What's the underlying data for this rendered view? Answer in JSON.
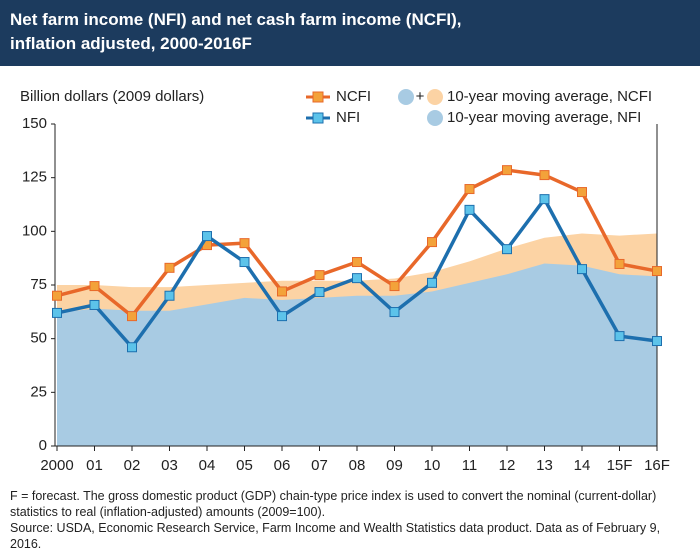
{
  "chart_data": {
    "type": "line",
    "title": "Net farm income (NFI) and net cash farm income (NCFI), inflation adjusted, 2000-2016F",
    "y_axis_label": "Billion dollars (2009 dollars)",
    "categories": [
      "2000",
      "01",
      "02",
      "03",
      "04",
      "05",
      "06",
      "07",
      "08",
      "09",
      "10",
      "11",
      "12",
      "13",
      "14",
      "15F",
      "16F"
    ],
    "series": [
      {
        "name": "10-year moving average, NCFI",
        "kind": "area",
        "color": "#fcd3a4",
        "values": [
          75,
          75,
          74,
          74,
          75,
          76,
          77,
          77,
          77,
          78,
          81,
          86,
          92,
          97,
          99,
          98,
          99
        ]
      },
      {
        "name": "10-year moving average, NFI",
        "kind": "area",
        "color": "#a8cbe3",
        "values": [
          62,
          64,
          63,
          63,
          66,
          69,
          68,
          69,
          70,
          70,
          72,
          76,
          80,
          85,
          84,
          80,
          79
        ]
      },
      {
        "name": "NCFI",
        "kind": "line",
        "color": "#e8682a",
        "marker_color": "#f3a23a",
        "values": [
          70,
          74.5,
          60.5,
          83,
          93.6,
          94.5,
          72,
          79.6,
          85.7,
          74.5,
          95,
          119.7,
          128.5,
          126.2,
          118.3,
          84.8,
          81.5
        ]
      },
      {
        "name": "NFI",
        "kind": "line",
        "color": "#1d6fae",
        "marker_color": "#5cc3ea",
        "values": [
          62,
          65.7,
          46,
          70,
          97.8,
          85.7,
          60.5,
          71.7,
          78.2,
          62.4,
          76,
          110,
          91.7,
          115,
          82.4,
          51.2,
          48.9
        ]
      }
    ],
    "legend_joiner": "+",
    "ylim": [
      0,
      150
    ],
    "yticks": [
      0,
      25,
      50,
      75,
      100,
      125,
      150
    ],
    "grid": false,
    "note": "F = forecast. The gross domestic product (GDP) chain-type price index is used to convert the nominal (current-dollar) statistics to real (inflation-adjusted) amounts (2009=100).",
    "source": "Source: USDA, Economic Research Service, Farm Income and Wealth Statistics data product. Data as of February 9, 2016."
  }
}
